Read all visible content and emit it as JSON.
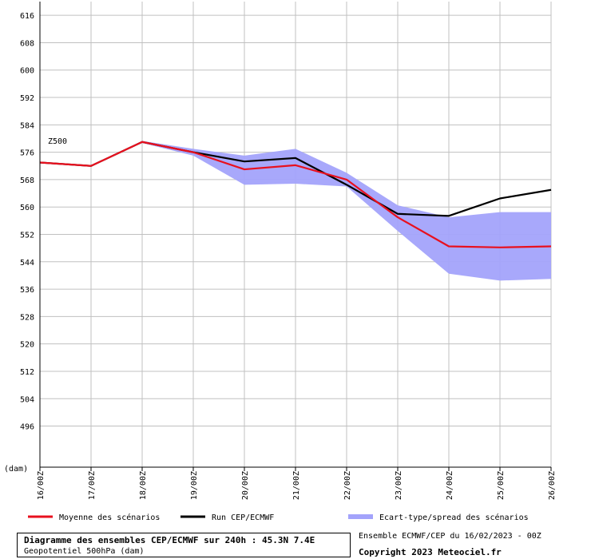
{
  "chart_data": {
    "type": "line",
    "x": [
      "16/00Z",
      "17/00Z",
      "18/00Z",
      "19/00Z",
      "20/00Z",
      "21/00Z",
      "22/00Z",
      "23/00Z",
      "24/00Z",
      "25/00Z",
      "26/00Z"
    ],
    "series": [
      {
        "name": "Moyenne des scénarios",
        "color": "#e8101e",
        "values": [
          573.0,
          572.0,
          579.0,
          576.0,
          571.0,
          572.2,
          568.0,
          557.0,
          548.5,
          548.2,
          548.5
        ]
      },
      {
        "name": "Run CEP/ECMWF",
        "color": "#000000",
        "values": [
          573.0,
          572.0,
          579.0,
          576.0,
          573.3,
          574.3,
          566.5,
          558.0,
          557.4,
          562.5,
          565.0
        ]
      },
      {
        "name": "Ecart-type/spread des scénarios",
        "color": "#a3a3fb",
        "lower": [
          573.0,
          572.0,
          578.7,
          575.0,
          566.5,
          566.8,
          566.0,
          553.0,
          540.5,
          538.5,
          539.0
        ],
        "upper": [
          573.0,
          572.0,
          579.3,
          577.0,
          575.0,
          577.0,
          570.0,
          560.5,
          557.0,
          558.5,
          558.5
        ]
      }
    ],
    "yticks": [
      496,
      504,
      512,
      520,
      528,
      536,
      544,
      552,
      560,
      568,
      576,
      584,
      592,
      600,
      608,
      616
    ],
    "ylim": [
      484,
      620
    ],
    "ylabel": "(dam)",
    "annotation": "Z500",
    "grid": true
  },
  "footer": {
    "title": "Diagramme des ensembles CEP/ECMWF sur 240h : 45.3N 7.4E",
    "subtitle": "Geopotentiel 500hPa (dam)",
    "run": "Ensemble ECMWF/CEP du 16/02/2023 - 00Z",
    "copyright": "Copyright 2023 Meteociel.fr"
  }
}
